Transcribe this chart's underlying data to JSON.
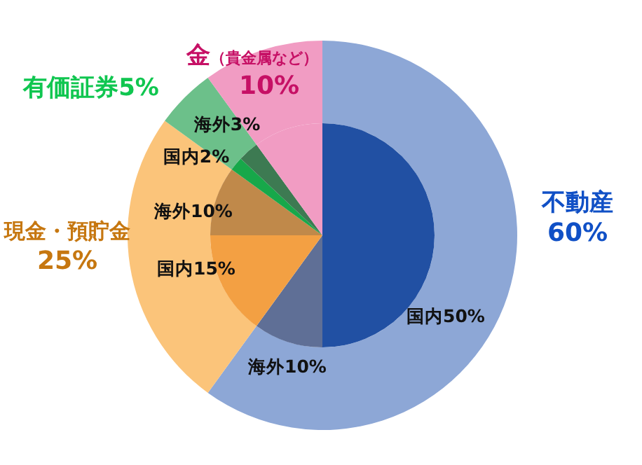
{
  "chart_data": [
    {
      "type": "donut",
      "categories": [
        "不動産",
        "現金・預貯金",
        "有価証券",
        "金"
      ],
      "values": [
        60,
        25,
        5,
        10
      ],
      "value_labels": [
        "60%",
        "25%",
        "5%",
        "10%"
      ],
      "annotations": [
        "（貴金属など）"
      ],
      "colors": [
        "#8da7d6",
        "#fbc47a",
        "#6cc08a",
        "#f19cc3"
      ]
    },
    {
      "type": "pie",
      "categories": [
        "国内",
        "海外",
        "国内",
        "海外",
        "国内",
        "海外",
        null
      ],
      "values": [
        50,
        10,
        15,
        10,
        2,
        3,
        10
      ],
      "value_labels": [
        "50%",
        "10%",
        "15%",
        "10%",
        "2%",
        "3%",
        null
      ],
      "colors": [
        "#2150a3",
        "#5f6f96",
        "#f3a043",
        "#c0894a",
        "#17a84a",
        "#3d7a52",
        "#f19cc3"
      ]
    }
  ]
}
